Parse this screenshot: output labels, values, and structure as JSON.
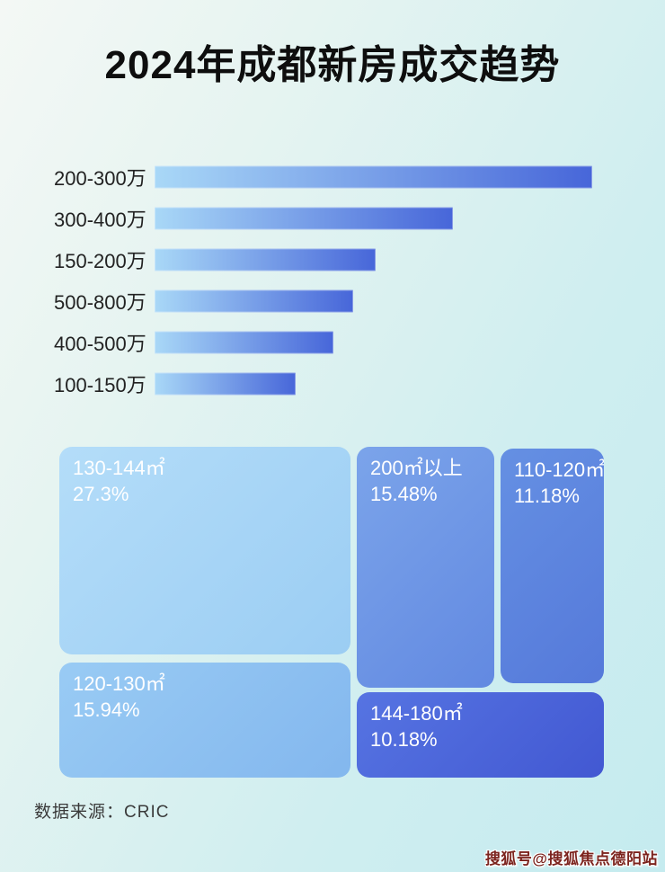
{
  "page": {
    "title": "2024年成都新房成交趋势",
    "source_note": "数据来源：CRIC",
    "watermark": "搜狐号@搜狐焦点德阳站",
    "background_colors": [
      "#f4f8f5",
      "#c5ebef"
    ]
  },
  "bar_chart": {
    "bar_gradient": [
      "#a9d8f7",
      "#4766d9"
    ],
    "bars": [
      {
        "label": "200-300万",
        "relative_width_pct": 100
      },
      {
        "label": "300-400万",
        "relative_width_pct": 68.2
      },
      {
        "label": "150-200万",
        "relative_width_pct": 50.5
      },
      {
        "label": "500-800万",
        "relative_width_pct": 45.4
      },
      {
        "label": "400-500万",
        "relative_width_pct": 40.9
      },
      {
        "label": "100-150万",
        "relative_width_pct": 32.2
      }
    ]
  },
  "treemap": {
    "tiles": [
      {
        "label": "130-144㎡",
        "value": "27.3%",
        "color_from": "#b4ddf9",
        "color_to": "#9bcdf3"
      },
      {
        "label": "200㎡以上",
        "value": "15.48%",
        "color_from": "#7ba4ea",
        "color_to": "#6289e1"
      },
      {
        "label": "110-120㎡",
        "value": "11.18%",
        "color_from": "#6590e3",
        "color_to": "#5579da"
      },
      {
        "label": "120-130㎡",
        "value": "15.94%",
        "color_from": "#99cbf4",
        "color_to": "#83b7ee"
      },
      {
        "label": "144-180㎡",
        "value": "10.18%",
        "color_from": "#5674e2",
        "color_to": "#4258d2"
      }
    ]
  },
  "chart_data": [
    {
      "type": "bar",
      "orientation": "horizontal",
      "title": "2024年成都新房成交趋势",
      "categories": [
        "200-300万",
        "300-400万",
        "150-200万",
        "500-800万",
        "400-500万",
        "100-150万"
      ],
      "values": [
        100,
        68.2,
        50.5,
        45.4,
        40.9,
        32.2
      ],
      "values_note": "no numeric axis or data labels shown; values are bar lengths as % of the longest bar",
      "xlabel": "",
      "ylabel": "",
      "grid": false,
      "legend": false
    },
    {
      "type": "treemap",
      "title": "",
      "items": [
        {
          "label": "130-144㎡",
          "value_pct": 27.3
        },
        {
          "label": "200㎡以上",
          "value_pct": 15.48
        },
        {
          "label": "110-120㎡",
          "value_pct": 11.18
        },
        {
          "label": "120-130㎡",
          "value_pct": 15.94
        },
        {
          "label": "144-180㎡",
          "value_pct": 10.18
        }
      ],
      "legend": false,
      "source": "数据来源：CRIC"
    }
  ]
}
